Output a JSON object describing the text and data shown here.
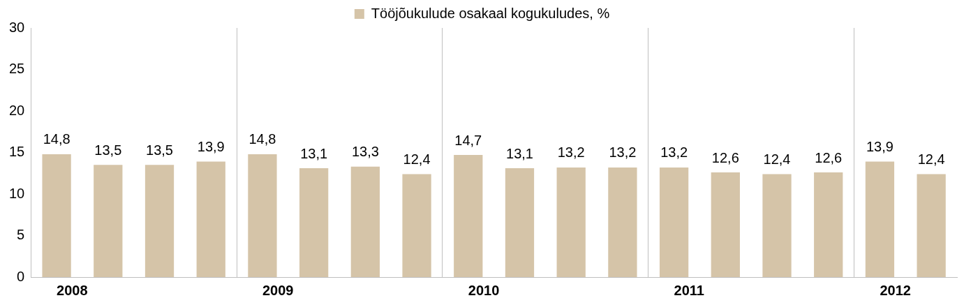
{
  "chart_data": {
    "type": "bar",
    "categories": [
      "2008",
      null,
      null,
      null,
      "2009",
      null,
      null,
      null,
      "2010",
      null,
      null,
      null,
      "2011",
      null,
      null,
      null,
      "2012",
      null
    ],
    "series": [
      {
        "name": "Tööjõukulude osakaal kogukuludes, %",
        "color": "#d5c4a8",
        "values": [
          14.8,
          13.5,
          13.5,
          13.9,
          14.8,
          13.1,
          13.3,
          12.4,
          14.7,
          13.1,
          13.2,
          13.2,
          13.2,
          12.6,
          12.4,
          12.6,
          13.9,
          12.4
        ],
        "value_labels": [
          "14,8",
          "13,5",
          "13,5",
          "13,9",
          "14,8",
          "13,1",
          "13,3",
          "12,4",
          "14,7",
          "13,1",
          "13,2",
          "13,2",
          "13,2",
          "12,6",
          "12,4",
          "12,6",
          "13,9",
          "12,4"
        ]
      }
    ],
    "ylim": [
      0,
      30
    ],
    "yticks": [
      0,
      5,
      10,
      15,
      20,
      25,
      30
    ],
    "grid": "x",
    "legend": "top"
  }
}
